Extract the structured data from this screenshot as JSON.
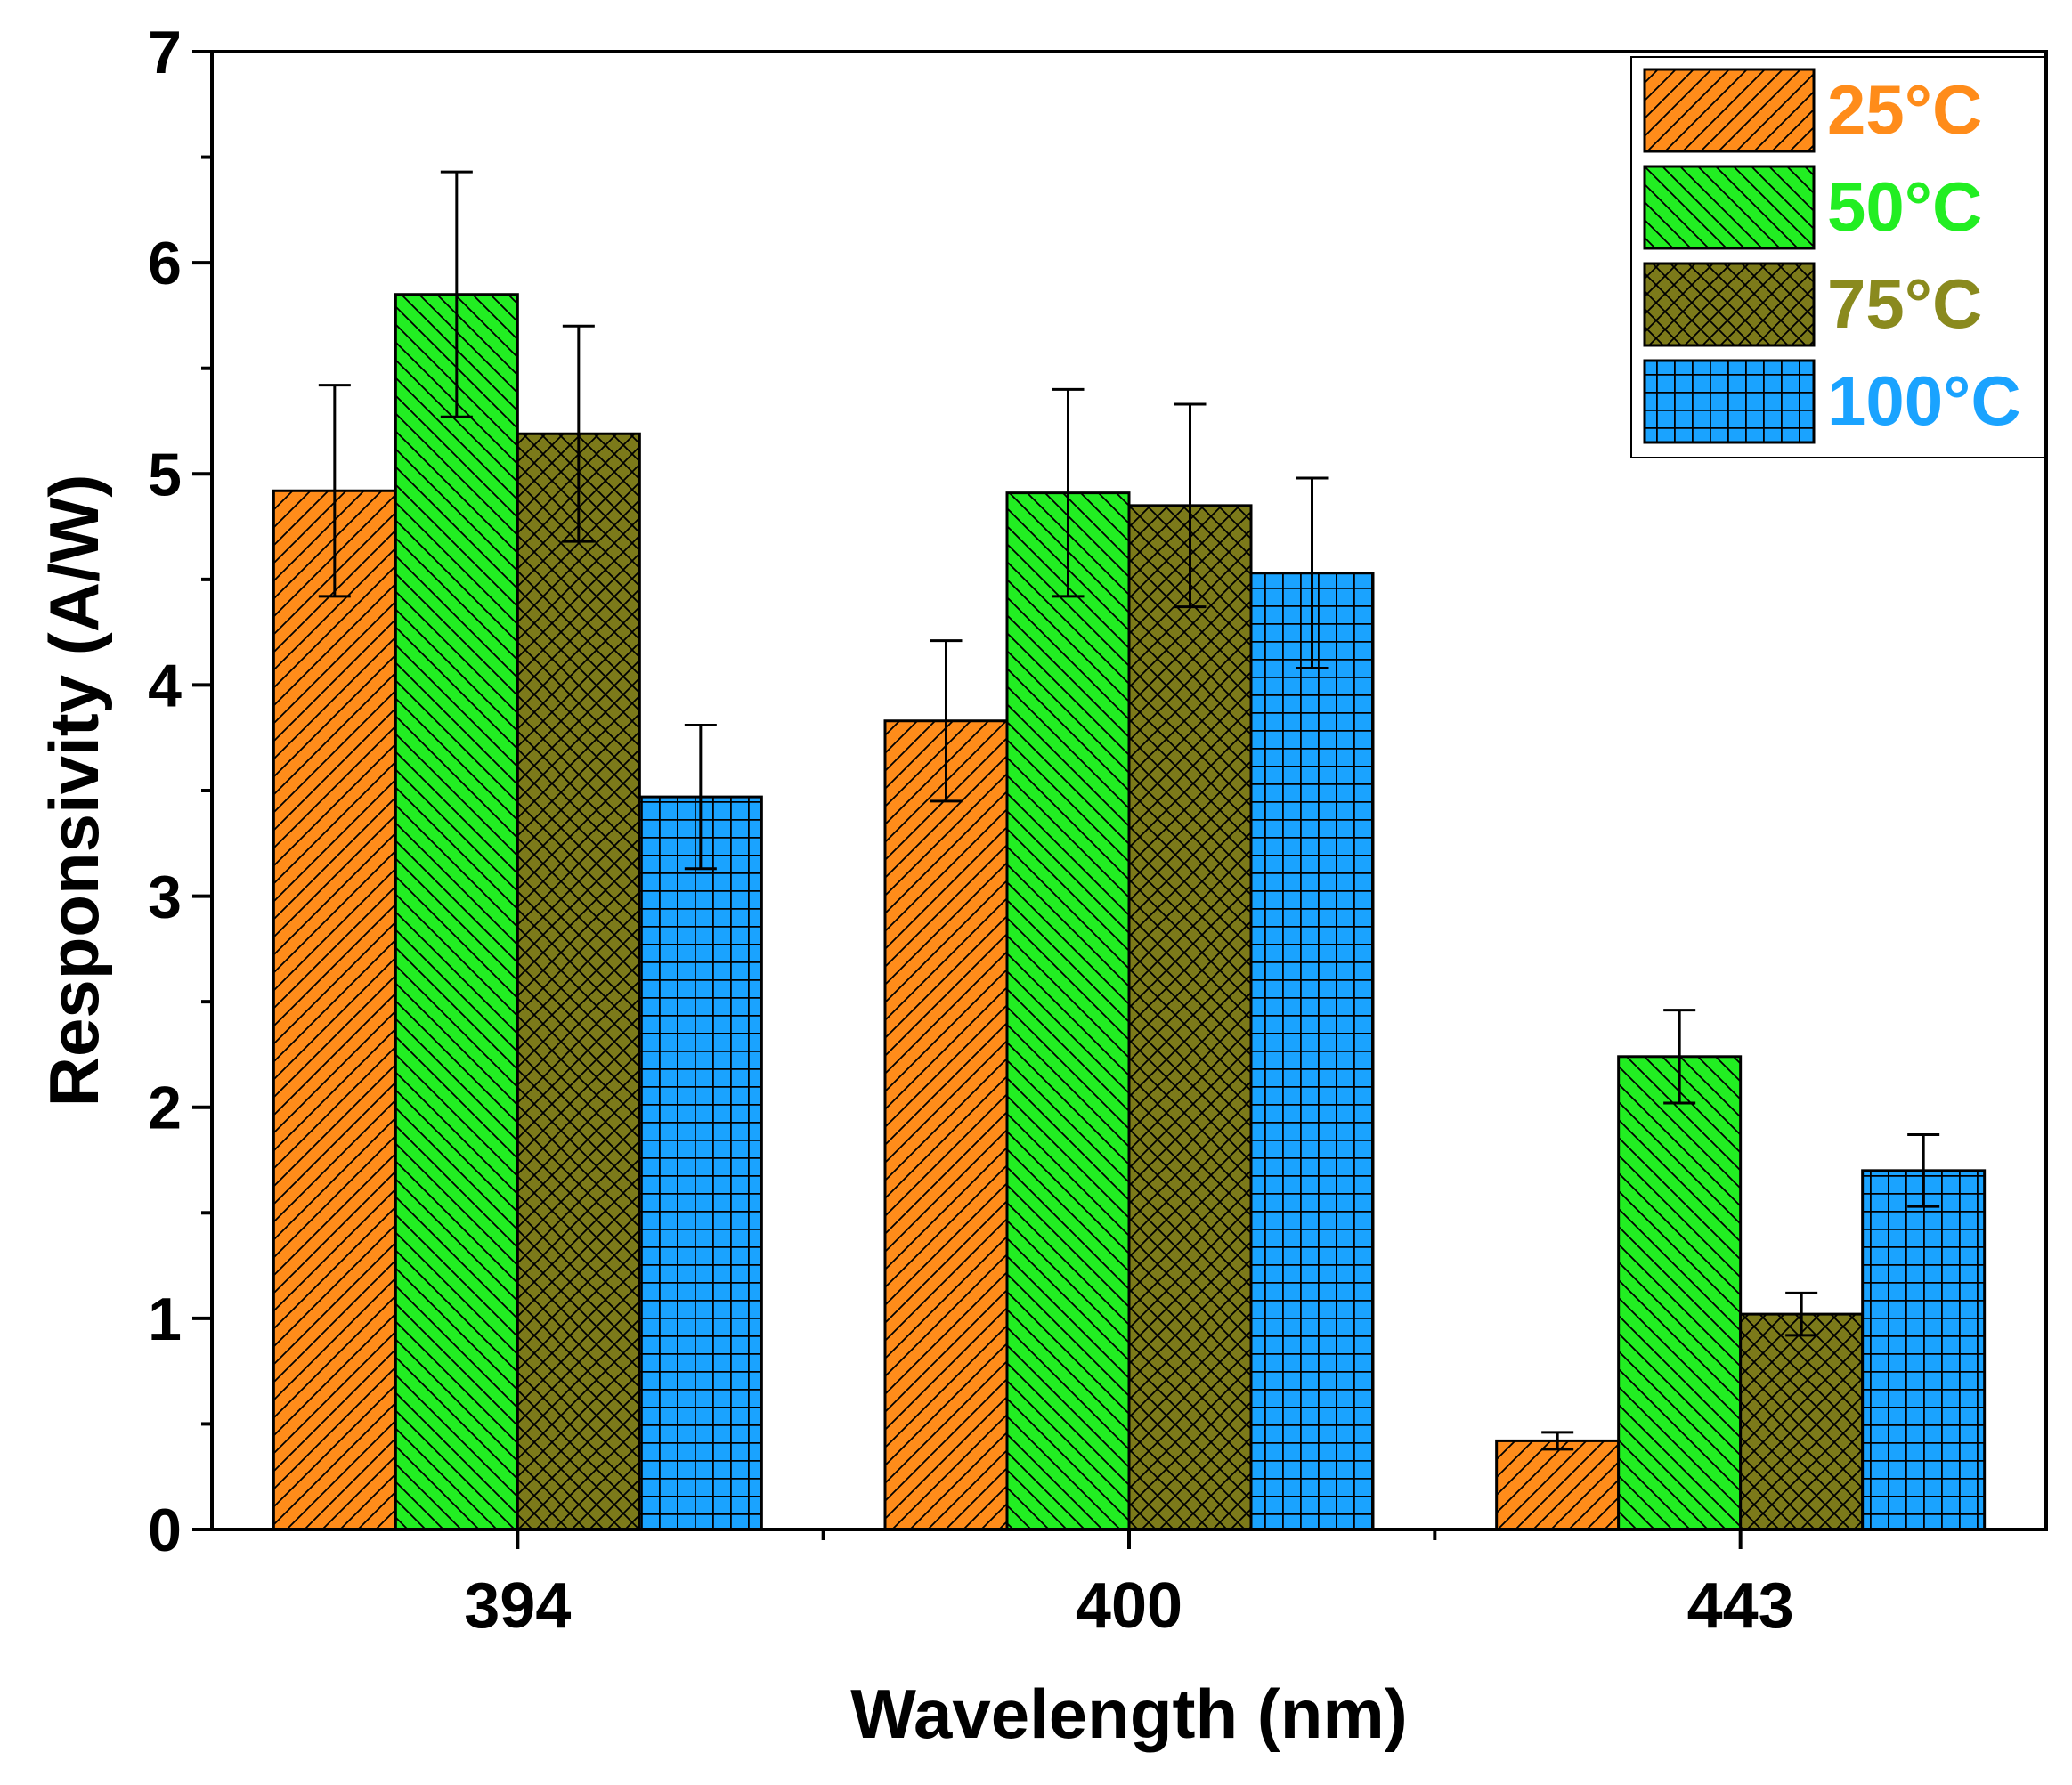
{
  "chart_data": {
    "type": "bar",
    "xlabel": "Wavelength (nm)",
    "ylabel": "Responsivity (A/W)",
    "ylim": [
      0,
      7
    ],
    "yticks": [
      "0",
      "1",
      "2",
      "3",
      "4",
      "5",
      "6",
      "7"
    ],
    "categories": [
      "394",
      "400",
      "443"
    ],
    "legend_position": "top-right",
    "grid": false,
    "series": [
      {
        "name": "25°C",
        "color": "#ff8c1a",
        "label_color": "#ff8c1a",
        "pattern": "diagonal-forward",
        "values": [
          4.92,
          3.83,
          0.42
        ],
        "errors": [
          0.5,
          0.38,
          0.04
        ]
      },
      {
        "name": "50°C",
        "color": "#22ee22",
        "label_color": "#22ee22",
        "pattern": "diagonal-back",
        "values": [
          5.85,
          4.91,
          2.24
        ],
        "errors": [
          0.58,
          0.49,
          0.22
        ]
      },
      {
        "name": "75°C",
        "color": "#7c7a1a",
        "label_color": "#8a8a1e",
        "pattern": "crosshatch",
        "values": [
          5.19,
          4.85,
          1.02
        ],
        "errors": [
          0.51,
          0.48,
          0.1
        ]
      },
      {
        "name": "100°C",
        "color": "#1aa3ff",
        "label_color": "#1aa3ff",
        "pattern": "grid",
        "values": [
          3.47,
          4.53,
          1.7
        ],
        "errors": [
          0.34,
          0.45,
          0.17
        ]
      }
    ]
  }
}
